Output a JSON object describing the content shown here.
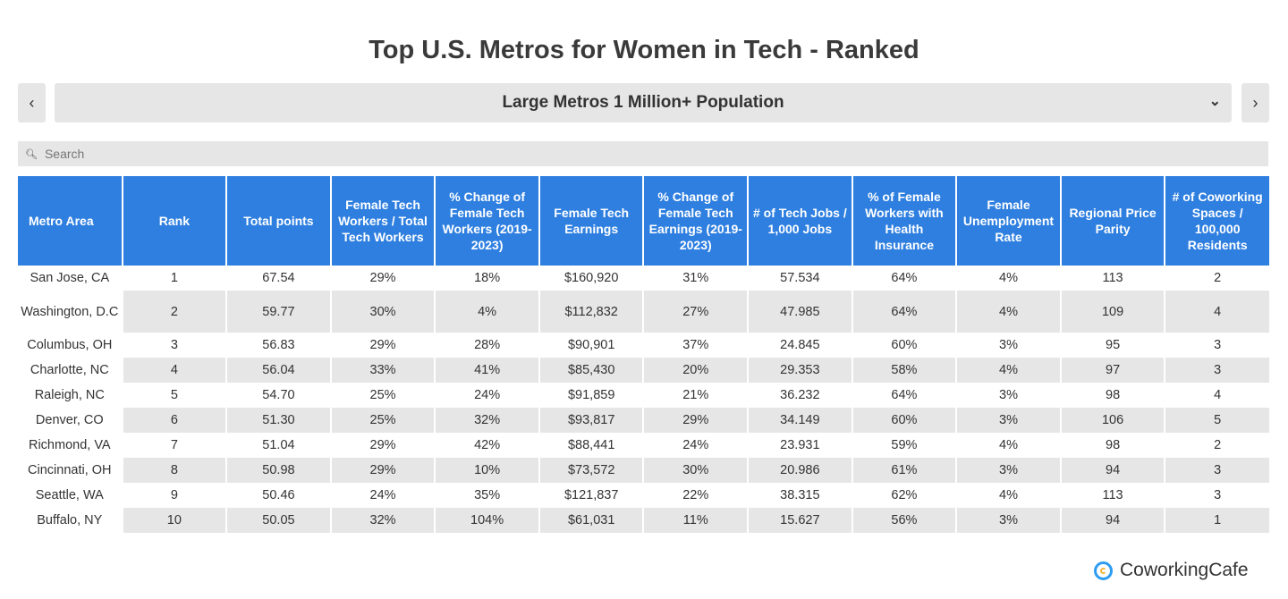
{
  "title": "Top U.S. Metros for Women in Tech - Ranked",
  "selector": {
    "value": "Large Metros 1 Million+ Population",
    "prev": "‹",
    "next": "›",
    "chevron": "⌄"
  },
  "search": {
    "placeholder": "Search"
  },
  "colors": {
    "header": "#2e7fe0",
    "stripe": "#e6e6e6"
  },
  "table": {
    "headers": [
      "Metro Area",
      "Rank",
      "Total points",
      "Female Tech Workers / Total Tech Workers",
      "% Change of Female Tech Workers (2019-2023)",
      "Female Tech Earnings",
      "% Change of Female Tech Earnings (2019-2023)",
      "# of Tech Jobs / 1,000 Jobs",
      "% of Female Workers with Health Insurance",
      "Female Unemployment Rate",
      "Regional Price Parity",
      "# of Coworking Spaces / 100,000 Residents"
    ],
    "rows": [
      [
        "San Jose, CA",
        "1",
        "67.54",
        "29%",
        "18%",
        "$160,920",
        "31%",
        "57.534",
        "64%",
        "4%",
        "113",
        "2"
      ],
      [
        "Washington, D.C",
        "2",
        "59.77",
        "30%",
        "4%",
        "$112,832",
        "27%",
        "47.985",
        "64%",
        "4%",
        "109",
        "4"
      ],
      [
        "Columbus, OH",
        "3",
        "56.83",
        "29%",
        "28%",
        "$90,901",
        "37%",
        "24.845",
        "60%",
        "3%",
        "95",
        "3"
      ],
      [
        "Charlotte, NC",
        "4",
        "56.04",
        "33%",
        "41%",
        "$85,430",
        "20%",
        "29.353",
        "58%",
        "4%",
        "97",
        "3"
      ],
      [
        "Raleigh, NC",
        "5",
        "54.70",
        "25%",
        "24%",
        "$91,859",
        "21%",
        "36.232",
        "64%",
        "3%",
        "98",
        "4"
      ],
      [
        "Denver, CO",
        "6",
        "51.30",
        "25%",
        "32%",
        "$93,817",
        "29%",
        "34.149",
        "60%",
        "3%",
        "106",
        "5"
      ],
      [
        "Richmond, VA",
        "7",
        "51.04",
        "29%",
        "42%",
        "$88,441",
        "24%",
        "23.931",
        "59%",
        "4%",
        "98",
        "2"
      ],
      [
        "Cincinnati, OH",
        "8",
        "50.98",
        "29%",
        "10%",
        "$73,572",
        "30%",
        "20.986",
        "61%",
        "3%",
        "94",
        "3"
      ],
      [
        "Seattle, WA",
        "9",
        "50.46",
        "24%",
        "35%",
        "$121,837",
        "22%",
        "38.315",
        "62%",
        "4%",
        "113",
        "3"
      ],
      [
        "Buffalo, NY",
        "10",
        "50.05",
        "32%",
        "104%",
        "$61,031",
        "11%",
        "15.627",
        "56%",
        "3%",
        "94",
        "1"
      ]
    ]
  },
  "brand": "CoworkingCafe"
}
